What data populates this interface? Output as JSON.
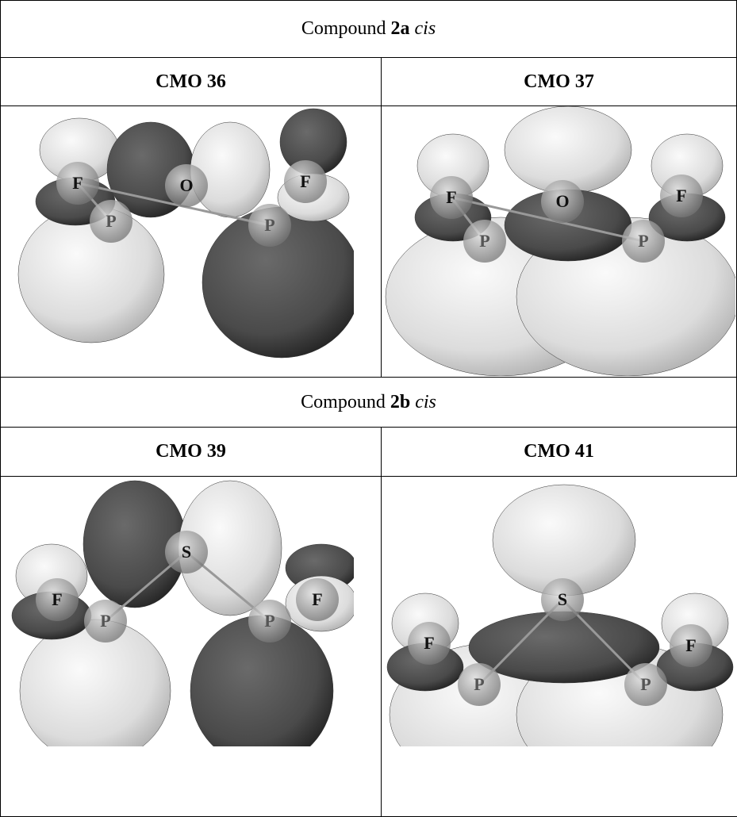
{
  "sections": [
    {
      "title": {
        "prefix": "Compound",
        "bold": "2a",
        "italic": "cis"
      },
      "panels": [
        {
          "label": "CMO 36",
          "atoms": [
            "F",
            "O",
            "F",
            "P",
            "P"
          ]
        },
        {
          "label": "CMO 37",
          "atoms": [
            "F",
            "O",
            "F",
            "P",
            "P"
          ]
        }
      ]
    },
    {
      "title": {
        "prefix": "Compound",
        "bold": "2b",
        "italic": "cis"
      },
      "panels": [
        {
          "label": "CMO 39",
          "atoms": [
            "S",
            "F",
            "F",
            "P",
            "P"
          ]
        },
        {
          "label": "CMO 41",
          "atoms": [
            "S",
            "F",
            "F",
            "P",
            "P"
          ]
        }
      ]
    }
  ]
}
